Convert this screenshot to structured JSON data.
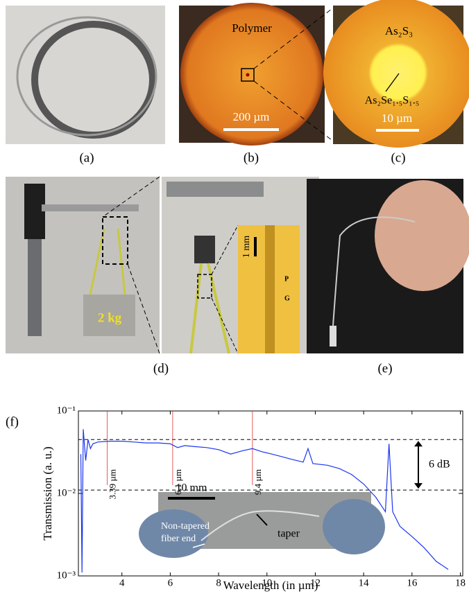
{
  "panels": {
    "a": {
      "label": "(a)"
    },
    "b": {
      "label": "(b)",
      "material": "Polymer",
      "scale": "200 µm"
    },
    "c": {
      "label": "(c)",
      "cladding": "As₂S₃",
      "core": "As₂Se₁.₅S₁.₅",
      "scale": "10 µm"
    },
    "d": {
      "label": "(d)",
      "weight": "2 kg",
      "scale": "1 mm",
      "marker_p": "P",
      "marker_g": "G"
    },
    "e": {
      "label": "(e)"
    }
  },
  "chart_data": {
    "type": "line",
    "panel_label": "(f)",
    "x_label": "Wavelength (in µm)",
    "y_label": "Transmission (a. u.)",
    "xlim": [
      2.2,
      18.1
    ],
    "ylim": [
      0.001,
      0.1
    ],
    "log_y": true,
    "xticks": [
      4,
      6,
      8,
      10,
      12,
      14,
      16,
      18
    ],
    "yticks": [
      {
        "value": 0.1,
        "label": "10⁻¹"
      },
      {
        "value": 0.01,
        "label": "10⁻²"
      },
      {
        "value": 0.001,
        "label": "10⁻³"
      }
    ],
    "series": [
      {
        "color": "#1a35f0",
        "x": [
          2.3,
          2.35,
          2.4,
          2.5,
          2.6,
          2.7,
          2.8,
          3.0,
          3.5,
          4,
          4.5,
          5,
          5.5,
          6,
          6.3,
          6.6,
          7,
          7.5,
          8,
          8.5,
          9,
          9.4,
          9.8,
          10.2,
          10.6,
          11,
          11.5,
          11.7,
          11.9,
          12.5,
          13,
          13.5,
          14,
          14.5,
          14.9,
          15.05,
          15.2,
          15.5,
          16,
          16.5,
          17,
          17.5
        ],
        "values": [
          0.03,
          0.0011,
          0.06,
          0.025,
          0.045,
          0.035,
          0.04,
          0.042,
          0.043,
          0.043,
          0.042,
          0.041,
          0.041,
          0.04,
          0.036,
          0.038,
          0.037,
          0.036,
          0.034,
          0.03,
          0.033,
          0.035,
          0.032,
          0.03,
          0.028,
          0.026,
          0.024,
          0.035,
          0.023,
          0.022,
          0.02,
          0.017,
          0.013,
          0.009,
          0.006,
          0.04,
          0.006,
          0.004,
          0.003,
          0.0022,
          0.0015,
          0.0012
        ]
      }
    ],
    "markers": {
      "color": "#e03030",
      "x": [
        3.39,
        6.1,
        9.4
      ],
      "labels": [
        "3.39 µm",
        "6.1 µm",
        "9.4 µm"
      ]
    },
    "reference_lines": [
      0.045,
      0.011
    ],
    "range_annotation": "6 dB",
    "inset": {
      "scale": "10 mm",
      "left_label": "Non-tapered fiber end",
      "right_label": "taper"
    }
  }
}
